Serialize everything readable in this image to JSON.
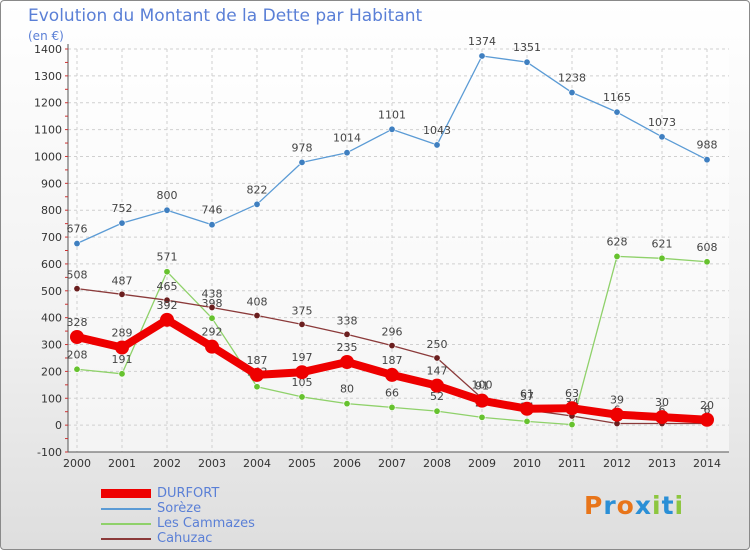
{
  "header": {
    "title": "Evolution du Montant de la Dette par Habitant",
    "unit": "(en €)"
  },
  "logo": {
    "text": "Proxiti",
    "letter_colors": [
      "#e8751a",
      "#2a8fd6",
      "#e8751a",
      "#2a8fd6",
      "#8dc63f",
      "#2a8fd6",
      "#8dc63f"
    ]
  },
  "chart_data": {
    "type": "line",
    "x": [
      "2000",
      "2001",
      "2002",
      "2003",
      "2004",
      "2005",
      "2006",
      "2007",
      "2008",
      "2009",
      "2010",
      "2011",
      "2012",
      "2013",
      "2014"
    ],
    "ylim": [
      -100,
      1400
    ],
    "yticks": [
      -100,
      0,
      100,
      200,
      300,
      400,
      500,
      600,
      700,
      800,
      900,
      1000,
      1100,
      1200,
      1300,
      1400
    ],
    "grid": true,
    "legend_position": "bottom-left",
    "series": [
      {
        "name": "Sorèze",
        "color": "#5b9bd5",
        "dot": "#3f7fc0",
        "values": [
          676,
          752,
          800,
          746,
          822,
          978,
          1014,
          1101,
          1043,
          1374,
          1351,
          1238,
          1165,
          1073,
          988
        ],
        "labels": [
          "676",
          "752",
          "800",
          "746",
          "822",
          "978",
          "1014",
          "1101",
          "1043",
          "1374",
          "1351",
          "1238",
          "1165",
          "1073",
          "988"
        ]
      },
      {
        "name": "Les Cammazes",
        "color": "#8fd16a",
        "dot": "#66c22e",
        "values": [
          208,
          191,
          571,
          398,
          143,
          105,
          80,
          66,
          52,
          29,
          14,
          2,
          628,
          621,
          608
        ],
        "labels": [
          "208",
          "191",
          "571",
          "398",
          "143",
          "105",
          "80",
          "66",
          "52",
          "29",
          "14",
          "2",
          "628",
          "621",
          "608"
        ]
      },
      {
        "name": "Cahuzac",
        "color": "#8b3a3a",
        "dot": "#6b1f1f",
        "values": [
          508,
          487,
          465,
          438,
          408,
          375,
          338,
          296,
          250,
          100,
          57,
          34,
          6,
          6,
          6
        ],
        "labels": [
          "508",
          "487",
          "465",
          "438",
          "408",
          "375",
          "338",
          "296",
          "250",
          "100",
          "57",
          "34",
          "6",
          "6",
          "6"
        ]
      },
      {
        "name": "DURFORT",
        "color": "#ee0000",
        "dot": "#ee0000",
        "values": [
          328,
          289,
          392,
          292,
          187,
          197,
          235,
          187,
          147,
          91,
          61,
          63,
          39,
          30,
          20
        ],
        "labels": [
          "328",
          "289",
          "392",
          "292",
          "187",
          "197",
          "235",
          "187",
          "147",
          "91",
          "61",
          "63",
          "39",
          "30",
          "20"
        ]
      }
    ],
    "legend": [
      "DURFORT",
      "Sorèze",
      "Les Cammazes",
      "Cahuzac"
    ]
  }
}
